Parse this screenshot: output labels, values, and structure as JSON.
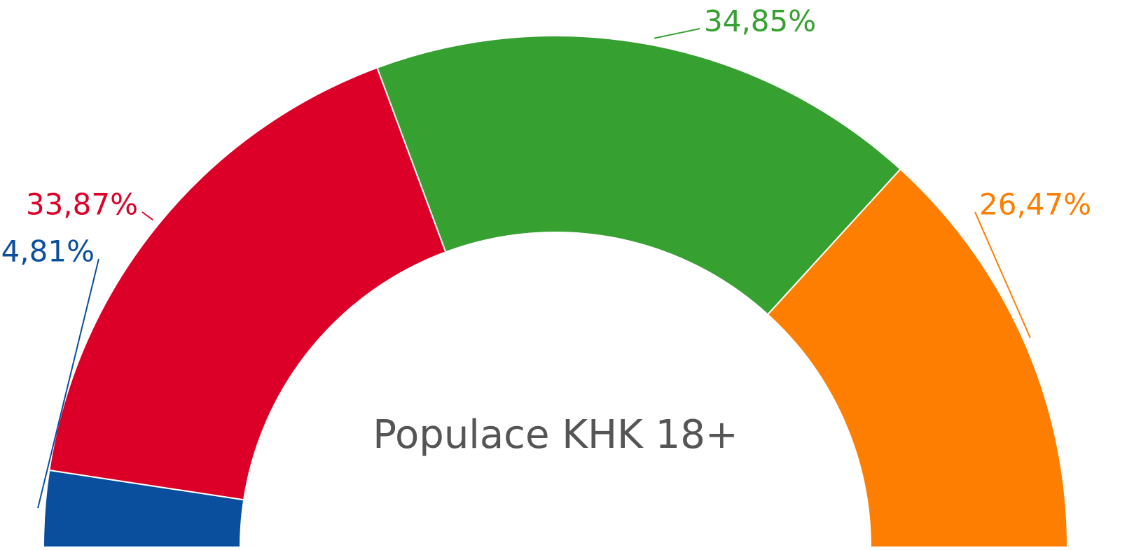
{
  "chart_data": {
    "type": "semi-donut",
    "center_label": "Populace KHK 18+",
    "categories": [
      null,
      null,
      null,
      null
    ],
    "values": [
      4.81,
      33.87,
      34.85,
      26.47
    ],
    "value_labels": [
      "4,81%",
      "33,87%",
      "34,85%",
      "26,47%"
    ],
    "colors": [
      "#0a4f9e",
      "#dc0028",
      "#36a030",
      "#fd7e00"
    ]
  }
}
